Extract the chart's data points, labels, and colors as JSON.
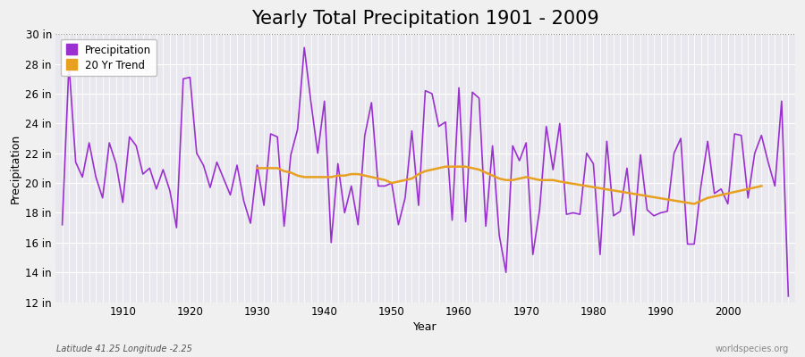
{
  "title": "Yearly Total Precipitation 1901 - 2009",
  "xlabel": "Year",
  "ylabel": "Precipitation",
  "years": [
    1901,
    1902,
    1903,
    1904,
    1905,
    1906,
    1907,
    1908,
    1909,
    1910,
    1911,
    1912,
    1913,
    1914,
    1915,
    1916,
    1917,
    1918,
    1919,
    1920,
    1921,
    1922,
    1923,
    1924,
    1925,
    1926,
    1927,
    1928,
    1929,
    1930,
    1931,
    1932,
    1933,
    1934,
    1935,
    1936,
    1937,
    1938,
    1939,
    1940,
    1941,
    1942,
    1943,
    1944,
    1945,
    1946,
    1947,
    1948,
    1949,
    1950,
    1951,
    1952,
    1953,
    1954,
    1955,
    1956,
    1957,
    1958,
    1959,
    1960,
    1961,
    1962,
    1963,
    1964,
    1965,
    1966,
    1967,
    1968,
    1969,
    1970,
    1971,
    1972,
    1973,
    1974,
    1975,
    1976,
    1977,
    1978,
    1979,
    1980,
    1981,
    1982,
    1983,
    1984,
    1985,
    1986,
    1987,
    1988,
    1989,
    1990,
    1991,
    1992,
    1993,
    1994,
    1995,
    1996,
    1997,
    1998,
    1999,
    2000,
    2001,
    2002,
    2003,
    2004,
    2005,
    2006,
    2007,
    2008,
    2009
  ],
  "precip_in": [
    17.2,
    28.0,
    21.4,
    20.4,
    22.7,
    20.4,
    19.0,
    22.7,
    21.3,
    18.7,
    23.1,
    22.5,
    20.6,
    21.0,
    19.6,
    20.9,
    19.5,
    17.0,
    27.0,
    27.1,
    22.0,
    21.2,
    19.7,
    21.4,
    20.3,
    19.2,
    21.2,
    18.8,
    17.3,
    21.2,
    18.5,
    23.3,
    23.1,
    17.1,
    21.9,
    23.6,
    29.1,
    25.4,
    22.0,
    25.5,
    16.0,
    21.3,
    18.0,
    19.8,
    17.2,
    23.2,
    25.4,
    19.8,
    19.8,
    20.0,
    17.2,
    19.0,
    23.5,
    18.5,
    26.2,
    26.0,
    23.8,
    24.1,
    17.5,
    26.4,
    17.4,
    26.1,
    25.7,
    17.1,
    22.5,
    16.5,
    14.0,
    22.5,
    21.5,
    22.7,
    15.2,
    18.2,
    23.8,
    20.9,
    24.0,
    17.9,
    18.0,
    17.9,
    22.0,
    21.3,
    15.2,
    22.8,
    17.8,
    18.1,
    21.0,
    16.5,
    21.9,
    18.2,
    17.8,
    18.0,
    18.1,
    22.0,
    23.0,
    15.9,
    15.9,
    19.8,
    22.8,
    19.3,
    19.6,
    18.6,
    23.3,
    23.2,
    19.0,
    22.0,
    23.2,
    21.4,
    19.8,
    25.5,
    12.4
  ],
  "trend_years": [
    1930,
    1931,
    1932,
    1933,
    1934,
    1935,
    1936,
    1937,
    1938,
    1939,
    1940,
    1941,
    1942,
    1943,
    1944,
    1945,
    1946,
    1947,
    1948,
    1949,
    1950,
    1951,
    1952,
    1953,
    1954,
    1955,
    1956,
    1957,
    1958,
    1959,
    1960,
    1961,
    1962,
    1963,
    1964,
    1965,
    1966,
    1967,
    1968,
    1969,
    1970,
    1971,
    1972,
    1973,
    1974,
    1975,
    1995,
    1996,
    1997,
    1998,
    1999,
    2000,
    2001,
    2002,
    2003,
    2004,
    2005
  ],
  "trend_values": [
    21.0,
    21.0,
    21.0,
    21.0,
    20.8,
    20.7,
    20.5,
    20.4,
    20.4,
    20.4,
    20.4,
    20.4,
    20.5,
    20.5,
    20.6,
    20.6,
    20.5,
    20.4,
    20.3,
    20.2,
    20.0,
    20.1,
    20.2,
    20.3,
    20.6,
    20.8,
    20.9,
    21.0,
    21.1,
    21.1,
    21.1,
    21.1,
    21.0,
    20.9,
    20.7,
    20.5,
    20.3,
    20.2,
    20.2,
    20.3,
    20.4,
    20.3,
    20.2,
    20.2,
    20.2,
    20.1,
    18.6,
    18.8,
    19.0,
    19.1,
    19.2,
    19.3,
    19.4,
    19.5,
    19.6,
    19.7,
    19.8
  ],
  "precip_color": "#9b30d0",
  "trend_color": "#e8a020",
  "fig_bg_color": "#f0f0f0",
  "plot_bg_color": "#e8e8ee",
  "grid_color": "#ffffff",
  "top_line_color": "#888888",
  "ylim": [
    12,
    30
  ],
  "ytick_labels": [
    "12 in",
    "14 in",
    "16 in",
    "18 in",
    "20 in",
    "22 in",
    "24 in",
    "26 in",
    "28 in",
    "30 in"
  ],
  "ytick_values": [
    12,
    14,
    16,
    18,
    20,
    22,
    24,
    26,
    28,
    30
  ],
  "xtick_values": [
    1910,
    1920,
    1930,
    1940,
    1950,
    1960,
    1970,
    1980,
    1990,
    2000
  ],
  "footnote_left": "Latitude 41.25 Longitude -2.25",
  "footnote_right": "worldspecies.org",
  "legend_entries": [
    "Precipitation",
    "20 Yr Trend"
  ],
  "title_fontsize": 15,
  "axis_fontsize": 9,
  "tick_fontsize": 8.5
}
